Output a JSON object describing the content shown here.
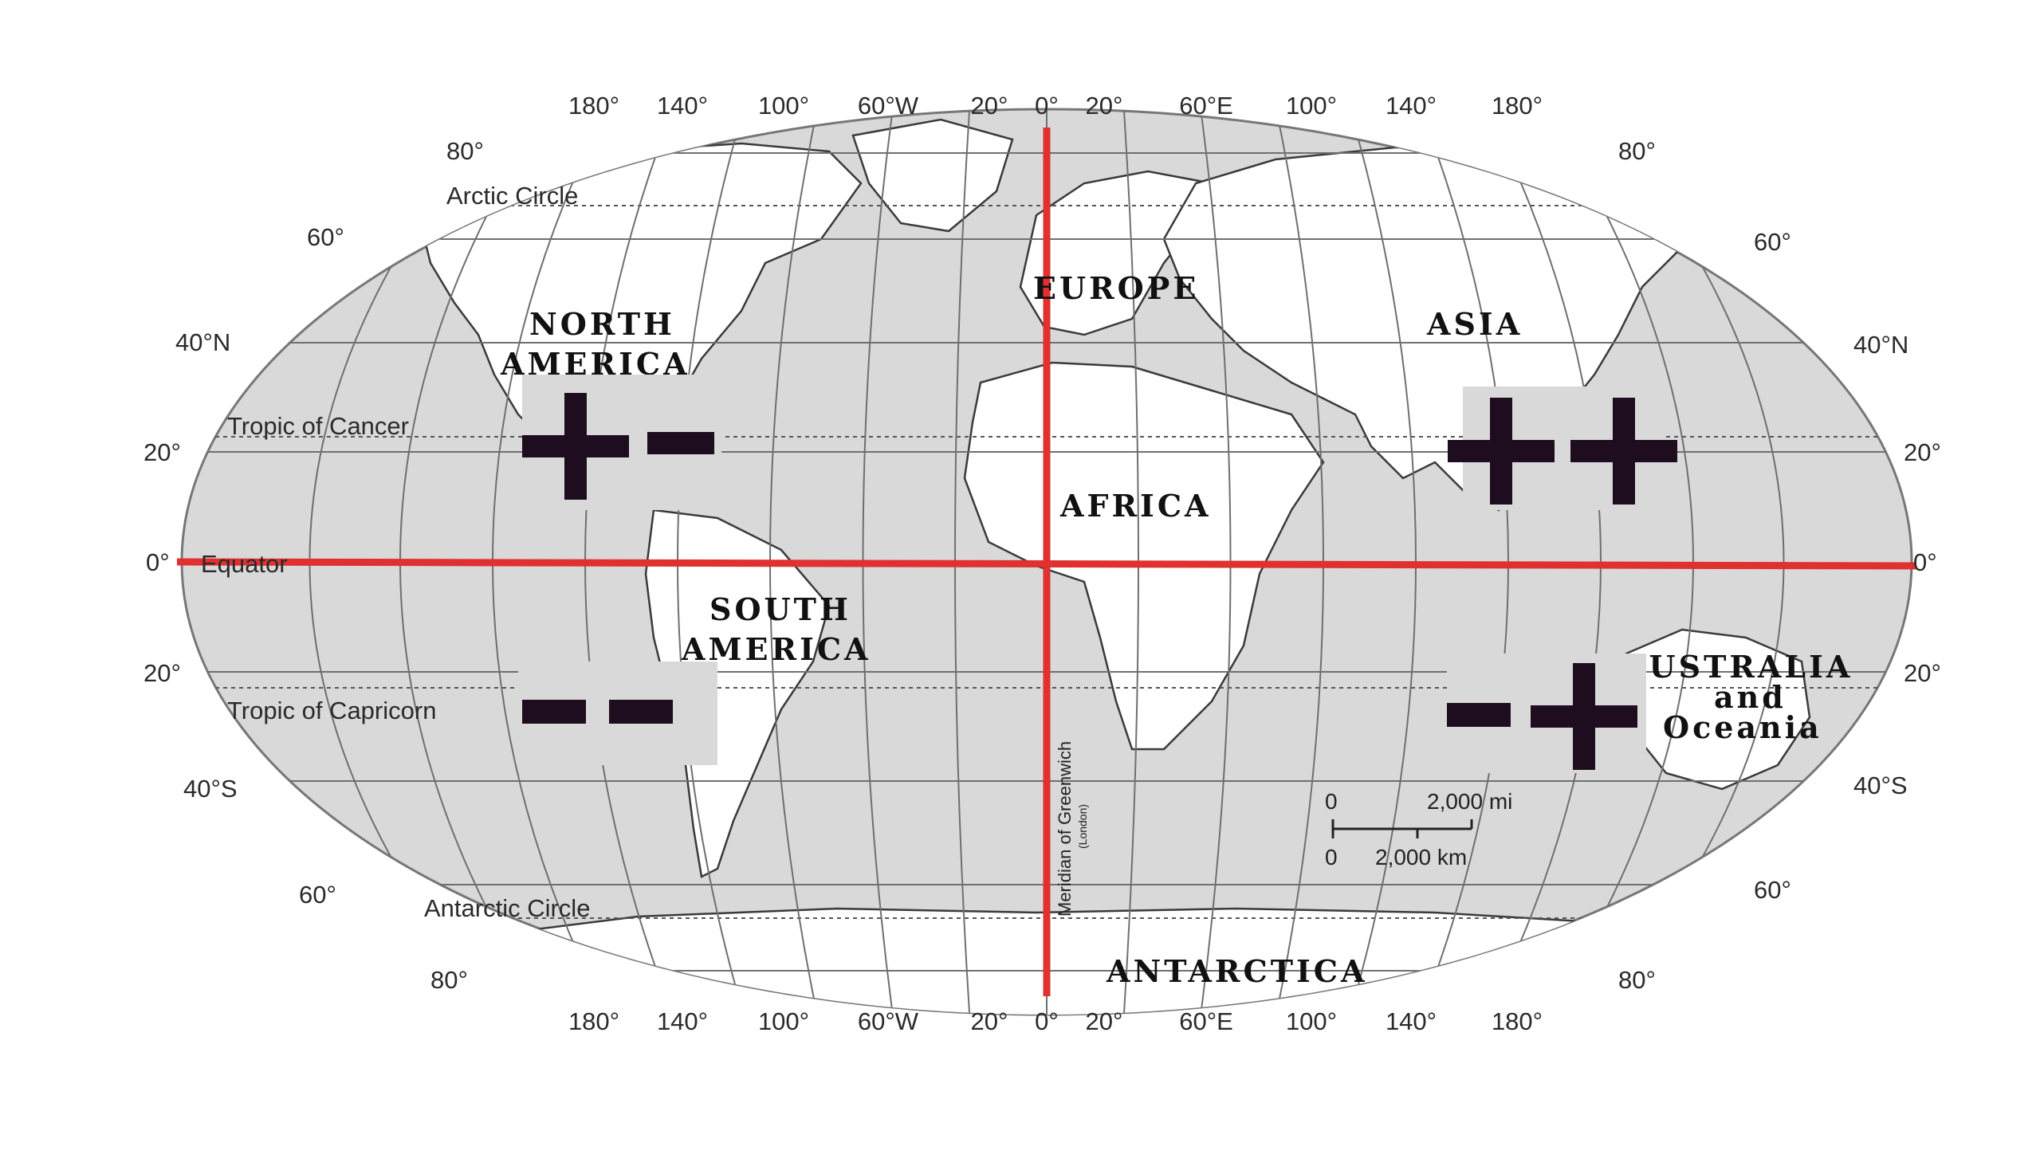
{
  "map": {
    "top_longitude_labels": [
      "180°",
      "140°",
      "100°",
      "60°W",
      "20°",
      "0°",
      "20°",
      "60°E",
      "100°",
      "140°",
      "180°"
    ],
    "bottom_longitude_labels": [
      "180°",
      "140°",
      "100°",
      "60°W",
      "20°",
      "0°",
      "20°",
      "60°E",
      "100°",
      "140°",
      "180°"
    ],
    "left_latitude_labels": [
      "80°",
      "60°",
      "40°N",
      "20°",
      "0°",
      "20°",
      "40°S",
      "60°",
      "80°"
    ],
    "right_latitude_labels": [
      "80°",
      "60°",
      "40°N",
      "20°",
      "0°",
      "20°",
      "40°S",
      "60°",
      "80°"
    ],
    "special_lines": {
      "arctic_circle": "Arctic Circle",
      "tropic_of_cancer": "Tropic of Cancer",
      "equator": "Equator",
      "tropic_of_capricorn": "Tropic of Capricorn",
      "antarctic_circle": "Antarctic Circle",
      "prime_meridian": "Meridian of Greenwich",
      "prime_meridian_sub": "(London)"
    },
    "continents": {
      "north_america_1": "NORTH",
      "north_america_2": "AMERICA",
      "south_america_1": "SOUTH",
      "south_america_2": "AMERICA",
      "europe": "EUROPE",
      "asia": "ASIA",
      "africa": "AFRICA",
      "australia_1": "AUSTRALIA",
      "australia_2": "and",
      "australia_3": "Oceania",
      "antarctica": "ANTARCTICA"
    },
    "scale": {
      "mi_zero": "0",
      "mi_value": "2,000 mi",
      "km_zero": "0",
      "km_value": "2,000 km"
    },
    "quadrant_signs": {
      "nw": "+ −",
      "ne": "+ +",
      "sw": "− −",
      "se": "− +"
    },
    "colors": {
      "ocean": "#d9d9d9",
      "land": "#ffffff",
      "grid": "#6f6f6f",
      "axis": "#e03030",
      "sign": "#1e0d1e"
    }
  }
}
